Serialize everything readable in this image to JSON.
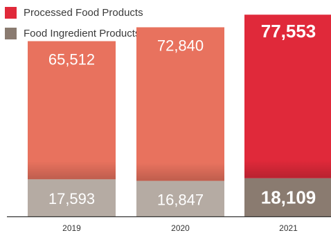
{
  "legend": [
    {
      "label": "Processed Food Products",
      "color": "#e0293a"
    },
    {
      "label": "Food Ingredient Products",
      "color": "#8a7b70"
    }
  ],
  "chart_data": {
    "type": "bar",
    "stacked": true,
    "categories": [
      "2019",
      "2020",
      "2021"
    ],
    "series": [
      {
        "name": "Food Ingredient Products",
        "values": [
          17593,
          16847,
          18109
        ]
      },
      {
        "name": "Processed Food Products",
        "values": [
          65512,
          72840,
          77553
        ]
      }
    ],
    "value_labels": {
      "Food Ingredient Products": [
        "17,593",
        "16,847",
        "18,109"
      ],
      "Processed Food Products": [
        "65,512",
        "72,840",
        "77,553"
      ]
    },
    "highlight_category": "2021",
    "colors": {
      "processed": "#e8725e",
      "processed_highlight": "#e0293a",
      "ingredient": "#b5aba3",
      "ingredient_highlight": "#8a7b70",
      "axis": "#333333",
      "tick_label": "#333333",
      "value_label": "#ffffff"
    },
    "ylim": [
      0,
      100000
    ],
    "legend_position": "top-left",
    "grid": false
  }
}
